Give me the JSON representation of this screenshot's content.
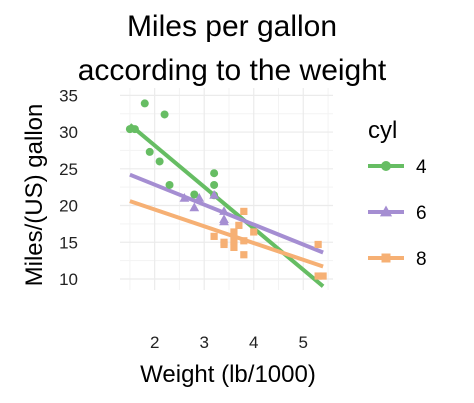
{
  "chart_data": {
    "type": "scatter",
    "title": [
      "Miles per gallon",
      "according to the weight"
    ],
    "xlabel": "Weight (lb/1000)",
    "ylabel": "Miles/(US) gallon",
    "xlim": [
      1.3,
      5.6
    ],
    "ylim": [
      8.5,
      36
    ],
    "xticks": [
      2,
      3,
      4,
      5
    ],
    "yticks": [
      10,
      15,
      20,
      25,
      30,
      35
    ],
    "grid": true,
    "legend": {
      "title": "cyl",
      "placement": "right"
    },
    "series": [
      {
        "name": "4",
        "color": "#66bd63",
        "marker": "circle",
        "points": [
          [
            1.5,
            30.4
          ],
          [
            1.6,
            30.4
          ],
          [
            1.8,
            33.9
          ],
          [
            1.9,
            27.3
          ],
          [
            2.1,
            26.0
          ],
          [
            2.2,
            32.4
          ],
          [
            2.3,
            22.8
          ],
          [
            2.8,
            21.5
          ],
          [
            3.2,
            22.8
          ],
          [
            3.2,
            24.4
          ],
          [
            3.2,
            21.4
          ]
        ],
        "fit": [
          [
            1.5,
            31.0
          ],
          [
            5.4,
            9.0
          ]
        ]
      },
      {
        "name": "6",
        "color": "#a58ed2",
        "marker": "triangle",
        "points": [
          [
            2.6,
            21.0
          ],
          [
            2.9,
            21.0
          ],
          [
            2.8,
            19.7
          ],
          [
            3.2,
            21.4
          ],
          [
            3.4,
            18.1
          ],
          [
            3.4,
            19.2
          ],
          [
            3.4,
            17.8
          ]
        ],
        "fit": [
          [
            1.5,
            24.2
          ],
          [
            5.4,
            13.6
          ]
        ]
      },
      {
        "name": "8",
        "color": "#f6b074",
        "marker": "square",
        "points": [
          [
            3.2,
            15.8
          ],
          [
            3.4,
            15.0
          ],
          [
            3.4,
            14.7
          ],
          [
            3.6,
            15.2
          ],
          [
            3.6,
            14.3
          ],
          [
            3.6,
            16.4
          ],
          [
            3.7,
            17.3
          ],
          [
            3.8,
            15.2
          ],
          [
            3.8,
            13.3
          ],
          [
            3.8,
            19.2
          ],
          [
            4.0,
            16.4
          ],
          [
            5.3,
            14.7
          ],
          [
            5.3,
            10.4
          ],
          [
            5.4,
            10.4
          ]
        ],
        "fit": [
          [
            1.5,
            20.6
          ],
          [
            5.4,
            11.7
          ]
        ]
      }
    ]
  }
}
